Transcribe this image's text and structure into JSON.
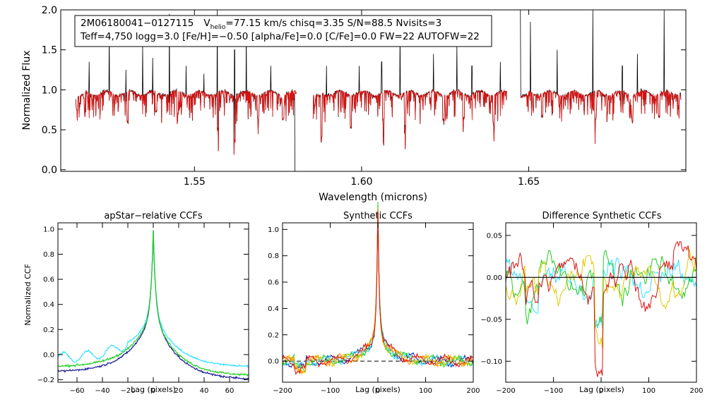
{
  "colors": {
    "black": "#000000",
    "red": "#dd1111",
    "navy": "#1a1a9a",
    "cyan": "#33e0ff",
    "green": "#22cc22",
    "orange": "#ff8800",
    "yellow": "#ddcc00"
  },
  "chart_data": [
    {
      "type": "line",
      "id": "spectrum",
      "info_line1": {
        "star": "2M06180041−0127115",
        "v_prefix": "V",
        "v_sub": "helio",
        "v_rest": "=77.15 km/s  chisq=3.35  S/N=88.5  Nvisits=3"
      },
      "info_line2": "Teff=4,750 logg=3.0 [Fe/H]=−0.50 [alpha/Fe]=0.0 [C/Fe]=0.0 FW=22 AUTOFW=22",
      "xlabel": "Wavelength (microns)",
      "ylabel": "Normalized Flux",
      "xlim": [
        1.51,
        1.697
      ],
      "ylim": [
        -0.02,
        2.0
      ],
      "xticks": [
        1.55,
        1.6,
        1.65
      ],
      "xtick_labels": [
        "1.55",
        "1.60",
        "1.65"
      ],
      "yticks": [
        0.0,
        0.5,
        1.0,
        1.5,
        2.0
      ],
      "ytick_labels": [
        "0.0",
        "0.5",
        "1.0",
        "1.5",
        "2.0"
      ],
      "chips": [
        [
          1.5145,
          1.5805
        ],
        [
          1.5855,
          1.6435
        ],
        [
          1.6475,
          1.6955
        ]
      ],
      "series": [
        {
          "name": "observed",
          "color": "black"
        },
        {
          "name": "model",
          "color": "red"
        }
      ]
    },
    {
      "type": "line",
      "id": "apstar",
      "title": "apStar−relative CCFs",
      "xlabel": "Lag (pixels)",
      "ylabel": "Normalized CCF",
      "xlim": [
        -75,
        75
      ],
      "ylim": [
        -0.22,
        1.05
      ],
      "xticks": [
        -60,
        -40,
        -20,
        0,
        20,
        40,
        60
      ],
      "xtick_labels": [
        "−60",
        "−40",
        "−20",
        "0",
        "20",
        "40",
        "60"
      ],
      "yticks": [
        -0.2,
        0.0,
        0.2,
        0.4,
        0.6,
        0.8,
        1.0
      ],
      "ytick_labels": [
        "−0.2",
        "0.0",
        "0.2",
        "0.4",
        "0.6",
        "0.8",
        "1.0"
      ],
      "series": [
        {
          "color": "navy",
          "peak": 0.98,
          "left": -0.14,
          "right": -0.2
        },
        {
          "color": "cyan",
          "peak": 0.99,
          "left": -0.03,
          "right": -0.1
        },
        {
          "color": "green",
          "peak": 0.99,
          "left": -0.1,
          "right": -0.17
        }
      ]
    },
    {
      "type": "line",
      "id": "synthetic",
      "title": "Synthetic CCFs",
      "xlabel": "Lag (pixels)",
      "ylabel": "",
      "xlim": [
        -200,
        200
      ],
      "ylim": [
        -0.16,
        1.05
      ],
      "zero_line": "dashed",
      "xticks": [
        -200,
        -100,
        0,
        100,
        200
      ],
      "xtick_labels": [
        "−200",
        "−100",
        "0",
        "100",
        "200"
      ],
      "yticks": [
        0.0,
        0.2,
        0.4,
        0.6,
        0.8,
        1.0
      ],
      "ytick_labels": [
        "0.0",
        "0.2",
        "0.4",
        "0.6",
        "0.8",
        "1.0"
      ],
      "series": [
        {
          "color": "navy"
        },
        {
          "color": "cyan"
        },
        {
          "color": "green"
        },
        {
          "color": "yellow"
        },
        {
          "color": "orange"
        },
        {
          "color": "red"
        }
      ]
    },
    {
      "type": "line",
      "id": "difference",
      "title": "Difference Synthetic CCFs",
      "xlabel": "Lag (pixels)",
      "ylabel": "",
      "xlim": [
        -200,
        200
      ],
      "ylim": [
        -0.125,
        0.065
      ],
      "zero_line": "solid",
      "xticks": [
        -200,
        -100,
        0,
        100,
        200
      ],
      "xtick_labels": [
        "−200",
        "−100",
        "0",
        "100",
        "200"
      ],
      "yticks": [
        -0.1,
        -0.05,
        0.0,
        0.05
      ],
      "ytick_labels": [
        "−0.10",
        "−0.05",
        "0.00",
        "0.05"
      ],
      "series": [
        {
          "color": "cyan"
        },
        {
          "color": "green"
        },
        {
          "color": "yellow"
        },
        {
          "color": "red"
        }
      ]
    }
  ]
}
